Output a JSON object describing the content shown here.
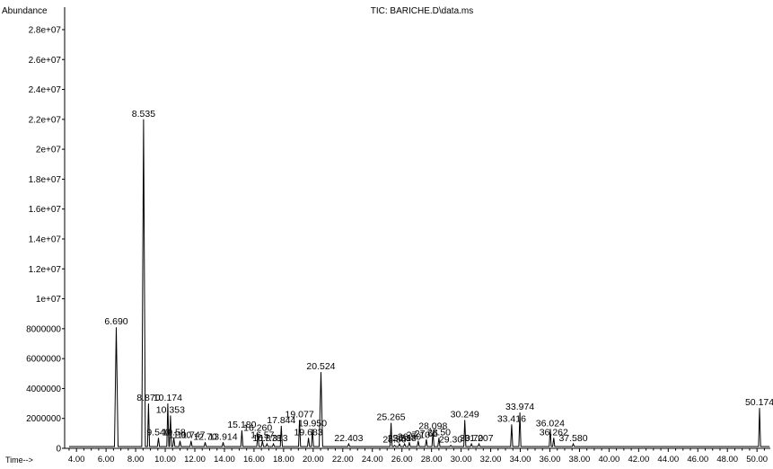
{
  "chart_data": {
    "type": "line",
    "title": "TIC: BARICHE.D\\data.ms",
    "ylabel": "Abundance",
    "xlabel": "Time-->",
    "xlim": [
      3.2,
      50.9
    ],
    "ylim": [
      0,
      29500000
    ],
    "xticks": [
      "4.00",
      "6.00",
      "8.00",
      "10.00",
      "12.00",
      "14.00",
      "16.00",
      "18.00",
      "20.00",
      "22.00",
      "24.00",
      "26.00",
      "28.00",
      "30.00",
      "32.00",
      "34.00",
      "36.00",
      "38.00",
      "40.00",
      "42.00",
      "44.00",
      "46.00",
      "48.00",
      "50.00"
    ],
    "yticks": [
      {
        "v": 0,
        "t": "0"
      },
      {
        "v": 2000000,
        "t": "2000000"
      },
      {
        "v": 4000000,
        "t": "4000000"
      },
      {
        "v": 6000000,
        "t": "6000000"
      },
      {
        "v": 8000000,
        "t": "8000000"
      },
      {
        "v": 10000000,
        "t": "1e+07"
      },
      {
        "v": 12000000,
        "t": "1.2e+07"
      },
      {
        "v": 14000000,
        "t": "1.4e+07"
      },
      {
        "v": 16000000,
        "t": "1.6e+07"
      },
      {
        "v": 18000000,
        "t": "1.8e+07"
      },
      {
        "v": 20000000,
        "t": "2e+07"
      },
      {
        "v": 22000000,
        "t": "2.2e+07"
      },
      {
        "v": 24000000,
        "t": "2.4e+07"
      },
      {
        "v": 26000000,
        "t": "2.6e+07"
      },
      {
        "v": 28000000,
        "t": "2.8e+07"
      }
    ],
    "grid": false,
    "peaks": [
      {
        "x": 6.69,
        "y": 8100000,
        "label": "6.690"
      },
      {
        "x": 8.535,
        "y": 22000000,
        "label": "8.535"
      },
      {
        "x": 8.87,
        "y": 3000000,
        "label": "8.870"
      },
      {
        "x": 9.54,
        "y": 700000,
        "label": "9.540"
      },
      {
        "x": 10.174,
        "y": 3000000,
        "label": "10.174"
      },
      {
        "x": 10.353,
        "y": 2200000,
        "label": "10.353"
      },
      {
        "x": 10.58,
        "y": 700000,
        "label": "10.58"
      },
      {
        "x": 11.0,
        "y": 500000,
        "label": "11.00"
      },
      {
        "x": 11.747,
        "y": 500000,
        "label": "11.747"
      },
      {
        "x": 12.7,
        "y": 400000,
        "label": "12.70"
      },
      {
        "x": 13.914,
        "y": 400000,
        "label": "13.914"
      },
      {
        "x": 15.18,
        "y": 1200000,
        "label": "15.180"
      },
      {
        "x": 16.26,
        "y": 1000000,
        "label": "16.260"
      },
      {
        "x": 16.57,
        "y": 500000,
        "label": "16.57"
      },
      {
        "x": 16.878,
        "y": 300000,
        "label": "16.878"
      },
      {
        "x": 17.313,
        "y": 300000,
        "label": "17.313"
      },
      {
        "x": 17.844,
        "y": 1500000,
        "label": "17.844"
      },
      {
        "x": 19.077,
        "y": 1900000,
        "label": "19.077"
      },
      {
        "x": 19.683,
        "y": 700000,
        "label": "19.683"
      },
      {
        "x": 19.95,
        "y": 1300000,
        "label": "19.950"
      },
      {
        "x": 20.524,
        "y": 5100000,
        "label": "20.524"
      },
      {
        "x": 22.403,
        "y": 300000,
        "label": "22.403"
      },
      {
        "x": 25.265,
        "y": 1700000,
        "label": "25.265"
      },
      {
        "x": 25.5,
        "y": 200000,
        "label": "25.50"
      },
      {
        "x": 25.83,
        "y": 300000,
        "label": "25.83"
      },
      {
        "x": 26.18,
        "y": 300000,
        "label": "26.18"
      },
      {
        "x": 26.5,
        "y": 400000,
        "label": "26.50"
      },
      {
        "x": 27.1,
        "y": 500000,
        "label": "27.10"
      },
      {
        "x": 27.65,
        "y": 600000,
        "label": "27.65"
      },
      {
        "x": 28.098,
        "y": 1100000,
        "label": "28.098"
      },
      {
        "x": 28.5,
        "y": 700000,
        "label": "28.50"
      },
      {
        "x": 29.3,
        "y": 200000,
        "label": "29.30"
      },
      {
        "x": 30.249,
        "y": 1900000,
        "label": "30.249"
      },
      {
        "x": 30.7,
        "y": 300000,
        "label": "30.70"
      },
      {
        "x": 31.207,
        "y": 300000,
        "label": "31.207"
      },
      {
        "x": 33.416,
        "y": 1600000,
        "label": "33.416"
      },
      {
        "x": 33.974,
        "y": 2400000,
        "label": "33.974"
      },
      {
        "x": 36.024,
        "y": 1300000,
        "label": "36.024"
      },
      {
        "x": 36.262,
        "y": 700000,
        "label": "36.262"
      },
      {
        "x": 37.58,
        "y": 300000,
        "label": "37.580"
      },
      {
        "x": 50.174,
        "y": 2700000,
        "label": "50.174"
      }
    ]
  }
}
